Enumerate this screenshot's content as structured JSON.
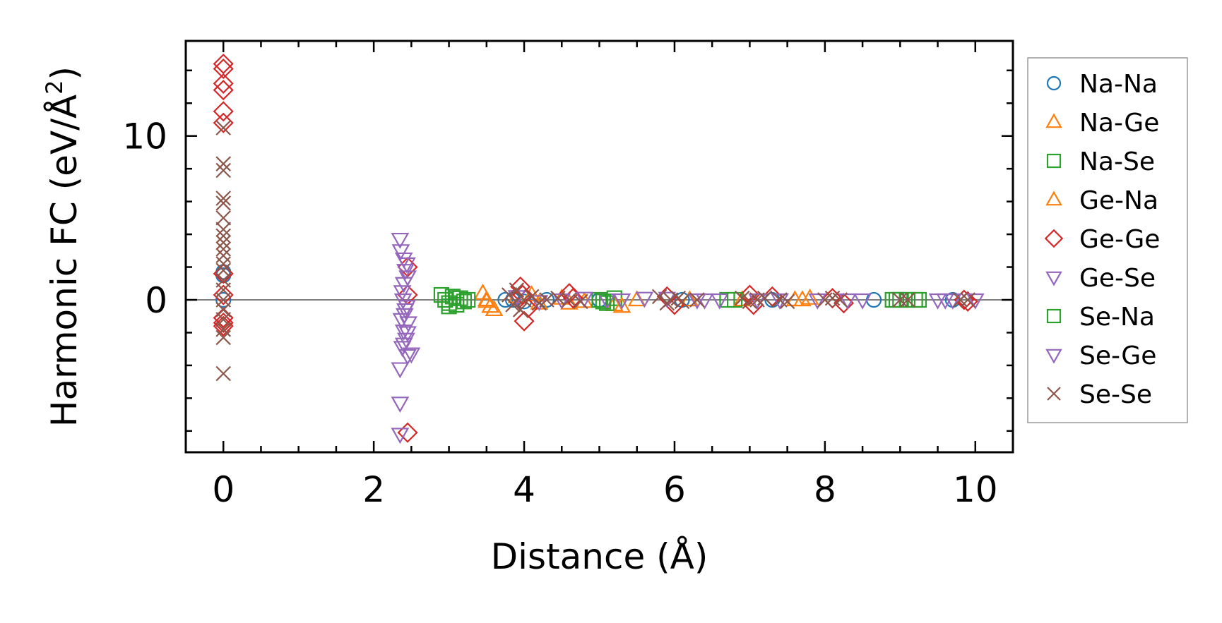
{
  "chart_data": {
    "type": "scatter",
    "title": "",
    "xlabel": "Distance (Å)",
    "ylabel_prefix": "Harmonic FC (eV/Å",
    "ylabel_sup": "2",
    "ylabel_suffix": ")",
    "xlim": [
      -0.5,
      10.5
    ],
    "ylim": [
      -9.3,
      15.8
    ],
    "x_ticks": [
      0,
      2,
      4,
      6,
      8,
      10
    ],
    "x_tick_labels": [
      "0",
      "2",
      "4",
      "6",
      "8",
      "10"
    ],
    "y_ticks": [
      0,
      10
    ],
    "y_tick_labels": [
      "0",
      "10"
    ],
    "zero_line": true,
    "legend_position": "outside-right",
    "series": [
      {
        "name": "Na-Na",
        "marker": "circle",
        "color": "#1f77b4",
        "points": [
          [
            0,
            1.7
          ],
          [
            0,
            1.5
          ],
          [
            0,
            0.0
          ],
          [
            3.75,
            0.0
          ],
          [
            3.85,
            0.0
          ],
          [
            4.0,
            -0.1
          ],
          [
            4.3,
            0.0
          ],
          [
            5.0,
            0.0
          ],
          [
            6.1,
            0.0
          ],
          [
            7.3,
            0.0
          ],
          [
            8.65,
            0.0
          ],
          [
            9.7,
            0.0
          ]
        ]
      },
      {
        "name": "Na-Ge",
        "marker": "triangle-up",
        "color": "#ff7f0e",
        "points": [
          [
            3.45,
            0.4
          ],
          [
            3.5,
            0.0
          ],
          [
            3.55,
            -0.4
          ],
          [
            3.6,
            -0.6
          ],
          [
            3.9,
            0.2
          ],
          [
            4.2,
            -0.2
          ],
          [
            4.5,
            0.1
          ],
          [
            4.8,
            -0.1
          ],
          [
            5.2,
            -0.3
          ],
          [
            5.5,
            0.0
          ],
          [
            6.2,
            0.0
          ],
          [
            7.6,
            0.0
          ],
          [
            7.8,
            0.1
          ]
        ]
      },
      {
        "name": "Na-Se",
        "marker": "square",
        "color": "#2ca02c",
        "points": [
          [
            2.9,
            0.3
          ],
          [
            2.95,
            0.0
          ],
          [
            3.0,
            -0.4
          ],
          [
            3.05,
            0.2
          ],
          [
            3.1,
            -0.3
          ],
          [
            3.15,
            0.1
          ],
          [
            3.2,
            -0.1
          ],
          [
            3.25,
            0.0
          ],
          [
            5.0,
            0.0
          ],
          [
            5.1,
            -0.2
          ],
          [
            5.2,
            0.1
          ],
          [
            6.7,
            0.0
          ],
          [
            8.9,
            0.0
          ],
          [
            9.0,
            0.0
          ],
          [
            9.1,
            0.0
          ],
          [
            9.25,
            0.0
          ]
        ]
      },
      {
        "name": "Ge-Na",
        "marker": "triangle-up",
        "color": "#ff7f0e",
        "points": [
          [
            3.5,
            -0.1
          ],
          [
            4.1,
            0.3
          ],
          [
            4.6,
            -0.2
          ],
          [
            5.3,
            -0.4
          ],
          [
            6.9,
            0.0
          ],
          [
            7.7,
            0.0
          ]
        ]
      },
      {
        "name": "Ge-Ge",
        "marker": "diamond",
        "color": "#d62728",
        "points": [
          [
            0,
            14.4
          ],
          [
            0,
            14.1
          ],
          [
            0,
            13.2
          ],
          [
            0,
            12.8
          ],
          [
            0,
            11.5
          ],
          [
            0,
            10.8
          ],
          [
            0,
            1.6
          ],
          [
            0,
            0.3
          ],
          [
            0,
            -1.1
          ],
          [
            0,
            -1.4
          ],
          [
            0,
            -1.6
          ],
          [
            2.45,
            2.0
          ],
          [
            2.45,
            0.3
          ],
          [
            2.45,
            -8.1
          ],
          [
            3.95,
            0.8
          ],
          [
            3.98,
            0.3
          ],
          [
            4.0,
            -1.3
          ],
          [
            4.05,
            -0.5
          ],
          [
            4.6,
            0.4
          ],
          [
            4.65,
            0.1
          ],
          [
            5.9,
            0.2
          ],
          [
            6.0,
            -0.3
          ],
          [
            7.0,
            0.3
          ],
          [
            7.05,
            -0.3
          ],
          [
            7.3,
            0.2
          ],
          [
            8.1,
            0.1
          ],
          [
            8.25,
            -0.2
          ],
          [
            9.85,
            0.0
          ],
          [
            9.9,
            -0.1
          ]
        ]
      },
      {
        "name": "Ge-Se",
        "marker": "triangle-down",
        "color": "#9467bd",
        "points": [
          [
            2.35,
            3.7
          ],
          [
            2.4,
            2.5
          ],
          [
            2.42,
            1.8
          ],
          [
            2.45,
            1.4
          ],
          [
            2.4,
            1.0
          ],
          [
            2.38,
            0.5
          ],
          [
            2.44,
            -0.4
          ],
          [
            2.41,
            -0.9
          ],
          [
            2.46,
            -1.4
          ],
          [
            2.4,
            -1.9
          ],
          [
            2.43,
            -2.4
          ],
          [
            2.38,
            -2.9
          ],
          [
            2.45,
            -3.4
          ],
          [
            2.35,
            -4.2
          ],
          [
            2.35,
            -6.3
          ],
          [
            2.35,
            -8.2
          ],
          [
            3.9,
            0.2
          ],
          [
            4.2,
            -0.1
          ],
          [
            4.8,
            0.1
          ],
          [
            5.1,
            0.0
          ],
          [
            5.6,
            0.1
          ],
          [
            5.9,
            0.1
          ],
          [
            6.3,
            0.0
          ],
          [
            6.6,
            0.0
          ],
          [
            7.1,
            0.0
          ],
          [
            7.4,
            0.0
          ],
          [
            8.3,
            0.0
          ],
          [
            8.5,
            0.0
          ],
          [
            9.7,
            0.0
          ],
          [
            10.0,
            0.0
          ]
        ]
      },
      {
        "name": "Se-Na",
        "marker": "square",
        "color": "#2ca02c",
        "points": [
          [
            3.0,
            -0.2
          ],
          [
            3.1,
            0.1
          ],
          [
            5.05,
            -0.1
          ],
          [
            6.8,
            0.0
          ],
          [
            8.95,
            0.0
          ],
          [
            9.2,
            0.0
          ]
        ]
      },
      {
        "name": "Se-Ge",
        "marker": "triangle-down",
        "color": "#9467bd",
        "points": [
          [
            2.36,
            3.0
          ],
          [
            2.44,
            2.2
          ],
          [
            2.39,
            0.0
          ],
          [
            2.42,
            -0.6
          ],
          [
            2.37,
            -1.2
          ],
          [
            2.45,
            -2.0
          ],
          [
            2.4,
            -2.7
          ],
          [
            2.5,
            -3.3
          ],
          [
            4.5,
            0.0
          ],
          [
            5.3,
            0.0
          ],
          [
            6.4,
            0.0
          ],
          [
            7.9,
            0.0
          ],
          [
            9.5,
            0.0
          ],
          [
            9.6,
            0.0
          ]
        ]
      },
      {
        "name": "Se-Se",
        "marker": "x",
        "color": "#8c564b",
        "points": [
          [
            0,
            10.5
          ],
          [
            0,
            8.3
          ],
          [
            0,
            7.9
          ],
          [
            0,
            6.2
          ],
          [
            0,
            5.9
          ],
          [
            0,
            5.0
          ],
          [
            0,
            4.3
          ],
          [
            0,
            3.9
          ],
          [
            0,
            3.5
          ],
          [
            0,
            3.1
          ],
          [
            0,
            2.7
          ],
          [
            0,
            2.2
          ],
          [
            0,
            1.8
          ],
          [
            0,
            1.2
          ],
          [
            0,
            0.6
          ],
          [
            0,
            0.0
          ],
          [
            0,
            -0.6
          ],
          [
            0,
            -1.2
          ],
          [
            0,
            -1.8
          ],
          [
            0,
            -2.3
          ],
          [
            0,
            -4.5
          ],
          [
            3.8,
            0.3
          ],
          [
            3.85,
            -0.3
          ],
          [
            3.9,
            0.6
          ],
          [
            3.95,
            -0.6
          ],
          [
            4.0,
            0.0
          ],
          [
            4.1,
            0.2
          ],
          [
            4.2,
            -0.2
          ],
          [
            4.3,
            0.0
          ],
          [
            4.45,
            0.1
          ],
          [
            4.6,
            0.0
          ],
          [
            4.75,
            -0.1
          ],
          [
            5.8,
            0.2
          ],
          [
            5.9,
            -0.2
          ],
          [
            5.95,
            0.0
          ],
          [
            6.05,
            0.1
          ],
          [
            6.1,
            -0.1
          ],
          [
            6.3,
            0.0
          ],
          [
            6.9,
            0.1
          ],
          [
            7.0,
            -0.1
          ],
          [
            7.1,
            0.0
          ],
          [
            7.2,
            0.1
          ],
          [
            7.4,
            0.0
          ],
          [
            7.5,
            -0.1
          ],
          [
            8.0,
            0.0
          ],
          [
            8.1,
            0.1
          ],
          [
            8.2,
            0.0
          ],
          [
            9.0,
            0.0
          ],
          [
            9.1,
            0.0
          ],
          [
            9.8,
            0.0
          ],
          [
            9.9,
            0.0
          ]
        ]
      }
    ]
  }
}
